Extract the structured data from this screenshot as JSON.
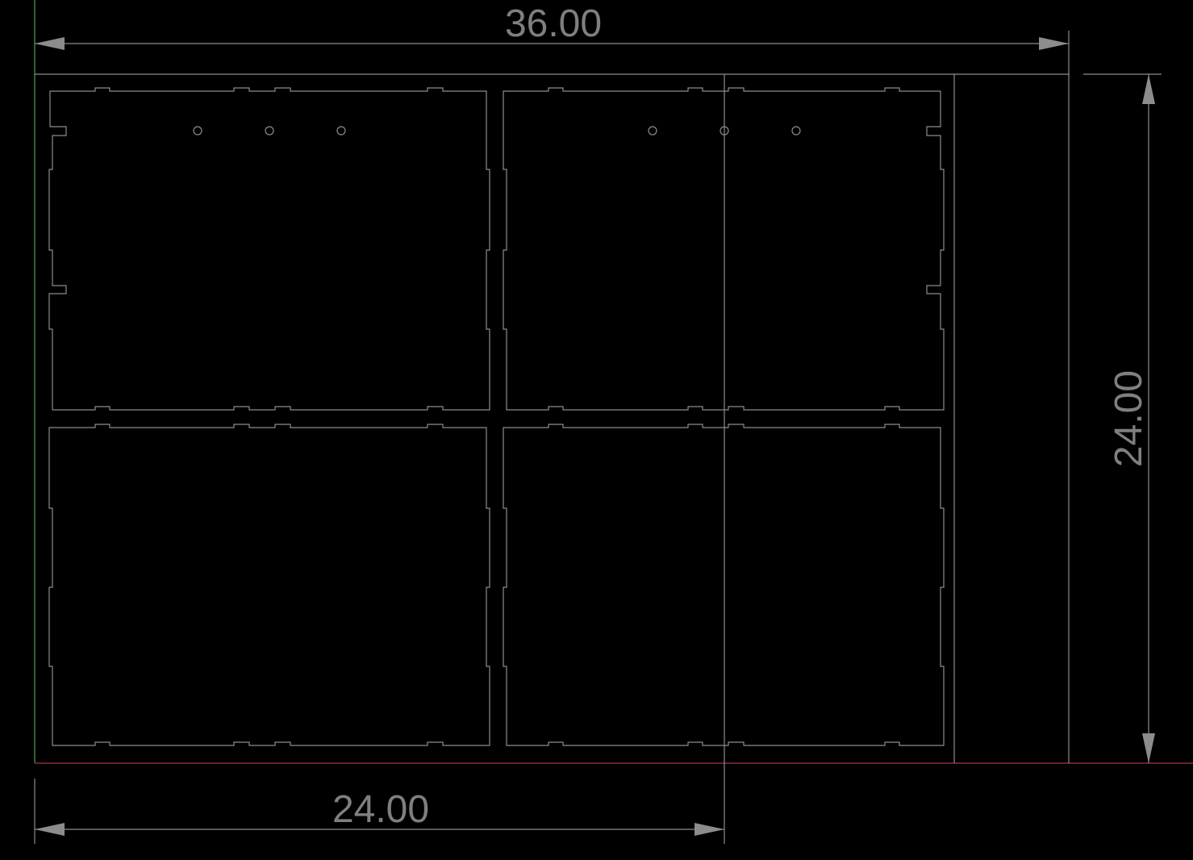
{
  "dimensions": {
    "top_width_label": "36.00",
    "bottom_width_label": "24.00",
    "right_height_label": "24.00"
  },
  "colors": {
    "background": "#000000",
    "outline": "#8c8c8c",
    "dimension": "#8c8c8c",
    "dimension_text": "#7f7f7f",
    "y_axis": "#2e8b3a",
    "x_axis": "#8b2e3a"
  }
}
